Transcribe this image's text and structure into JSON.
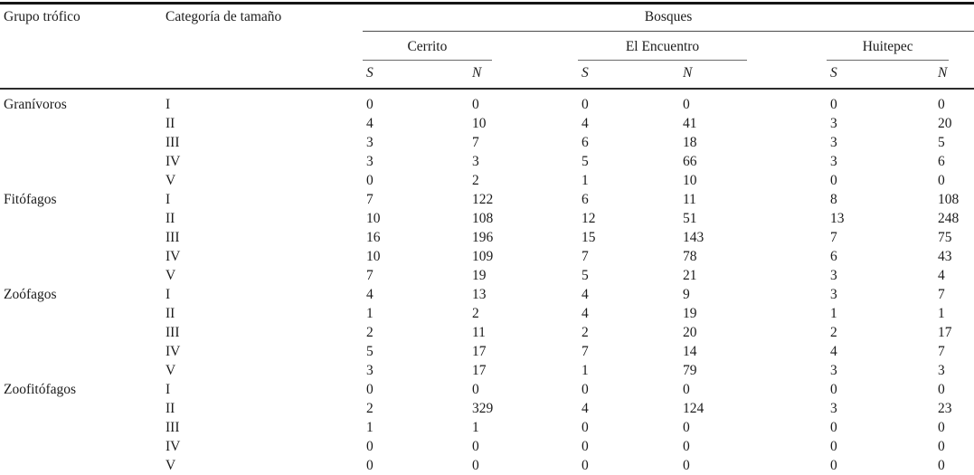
{
  "table": {
    "headers": {
      "col_grupo": "Grupo trófico",
      "col_categoria": "Categoría de tamaño",
      "span_bosques": "Bosques",
      "sites": [
        "Cerrito",
        "El Encuentro",
        "Huitepec"
      ],
      "measures": [
        "S",
        "N"
      ]
    }
  },
  "chart_data": {
    "type": "table",
    "columns": [
      "Grupo trófico",
      "Categoría de tamaño",
      "Cerrito S",
      "Cerrito N",
      "El Encuentro S",
      "El Encuentro N",
      "Huitepec S",
      "Huitepec N"
    ],
    "rows": [
      [
        "Granívoros",
        "I",
        0,
        0,
        0,
        0,
        0,
        0
      ],
      [
        "",
        "II",
        4,
        10,
        4,
        41,
        3,
        20
      ],
      [
        "",
        "III",
        3,
        7,
        6,
        18,
        3,
        5
      ],
      [
        "",
        "IV",
        3,
        3,
        5,
        66,
        3,
        6
      ],
      [
        "",
        "V",
        0,
        2,
        1,
        10,
        0,
        0
      ],
      [
        "Fitófagos",
        "I",
        7,
        122,
        6,
        11,
        8,
        108
      ],
      [
        "",
        "II",
        10,
        108,
        12,
        51,
        13,
        248
      ],
      [
        "",
        "III",
        16,
        196,
        15,
        143,
        7,
        75
      ],
      [
        "",
        "IV",
        10,
        109,
        7,
        78,
        6,
        43
      ],
      [
        "",
        "V",
        7,
        19,
        5,
        21,
        3,
        4
      ],
      [
        "Zoófagos",
        "I",
        4,
        13,
        4,
        9,
        3,
        7
      ],
      [
        "",
        "II",
        1,
        2,
        4,
        19,
        1,
        1
      ],
      [
        "",
        "III",
        2,
        11,
        2,
        20,
        2,
        17
      ],
      [
        "",
        "IV",
        5,
        17,
        7,
        14,
        4,
        7
      ],
      [
        "",
        "V",
        3,
        17,
        1,
        79,
        3,
        3
      ],
      [
        "Zoofitófagos",
        "I",
        0,
        0,
        0,
        0,
        0,
        0
      ],
      [
        "",
        "II",
        2,
        329,
        4,
        124,
        3,
        23
      ],
      [
        "",
        "III",
        1,
        1,
        0,
        0,
        0,
        0
      ],
      [
        "",
        "IV",
        0,
        0,
        0,
        0,
        0,
        0
      ],
      [
        "",
        "V",
        0,
        0,
        0,
        0,
        0,
        0
      ]
    ]
  }
}
